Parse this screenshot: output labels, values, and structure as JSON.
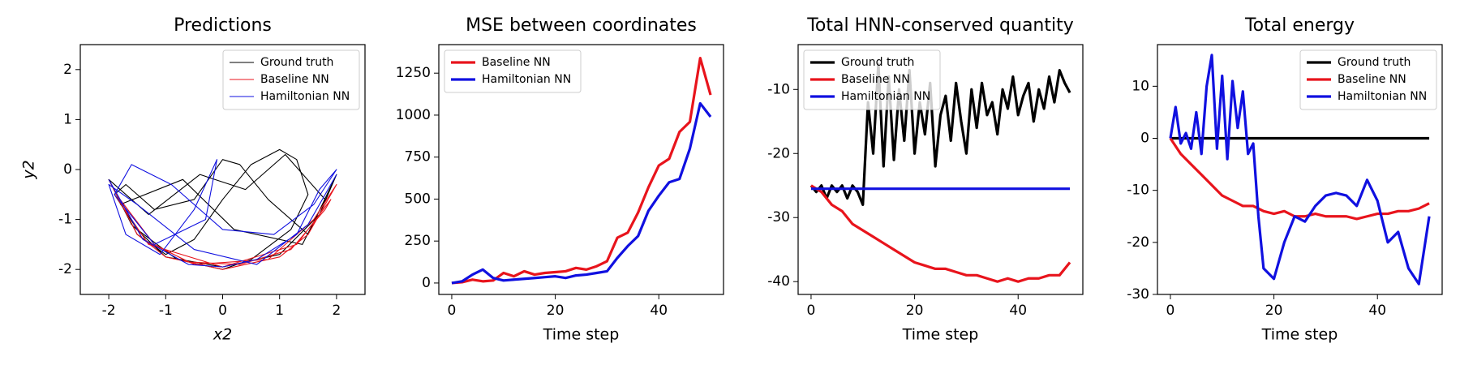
{
  "chart_data": [
    {
      "type": "line",
      "title": "Predictions",
      "xlabel": "x2",
      "ylabel": "y2",
      "xlim": [
        -2.5,
        2.5
      ],
      "ylim": [
        -2.5,
        2.5
      ],
      "xticks": [
        -2,
        -1,
        0,
        1,
        2
      ],
      "yticks": [
        -2,
        -1,
        0,
        1,
        2
      ],
      "legend": "upper right",
      "series": [
        {
          "name": "Ground truth",
          "color": "#000000",
          "x": [
            -2,
            -1.5,
            -1,
            -0.5,
            0,
            0.5,
            1,
            1.3,
            1.5,
            1.2,
            0.5,
            0,
            -0.8,
            -1.5,
            -1.9,
            -1.7,
            -1.2,
            -0.5,
            0,
            0.3,
            0.8,
            1.5,
            2,
            1.7,
            1,
            0,
            -1,
            -1.6,
            -2,
            -1.3,
            -0.4,
            0.4,
            1.1,
            1.8,
            1.4,
            0.2,
            -0.7,
            -1.8
          ],
          "values": [
            -0.2,
            -1.3,
            -1.7,
            -1.4,
            -0.6,
            0.1,
            0.4,
            0.2,
            -0.5,
            -1.2,
            -1.8,
            -2,
            -1.8,
            -1.2,
            -0.5,
            -0.3,
            -0.8,
            -0.6,
            0.2,
            0.1,
            -0.6,
            -1.3,
            -0.1,
            -0.9,
            -1.7,
            -1.95,
            -1.75,
            -1.1,
            -0.2,
            -0.9,
            -0.1,
            -0.4,
            0.3,
            -0.6,
            -1.5,
            -1.2,
            -0.2,
            -0.7
          ]
        },
        {
          "name": "Baseline NN",
          "color": "#e8141c",
          "x": [
            -2,
            -1.5,
            -1,
            0,
            1,
            1.5,
            2,
            1.6,
            0.8,
            -0.5,
            -1.4,
            -1.8,
            -1.6,
            -1.2,
            -0.6,
            0.3,
            1.2,
            1.8,
            1.9,
            1.3,
            0,
            -1.3,
            -1.9
          ],
          "values": [
            -0.2,
            -1.3,
            -1.75,
            -2,
            -1.75,
            -1.3,
            -0.3,
            -1.0,
            -1.8,
            -1.9,
            -1.4,
            -0.6,
            -0.9,
            -1.5,
            -1.85,
            -1.9,
            -1.6,
            -0.8,
            -0.6,
            -1.5,
            -1.95,
            -1.5,
            -0.5
          ]
        },
        {
          "name": "Hamiltonian NN",
          "color": "#1010e0",
          "x": [
            -2,
            -1.4,
            -0.6,
            0,
            0.6,
            1.3,
            1.7,
            2,
            1.6,
            0.9,
            0,
            -0.9,
            -1.6,
            -1.9,
            -1.2,
            -0.3,
            -0.1,
            -0.5,
            -1.1,
            -1.7,
            -2,
            -1.5,
            -0.5,
            0.6,
            1.5,
            2
          ],
          "values": [
            -0.2,
            -1.4,
            -1.9,
            -1.95,
            -1.8,
            -1.3,
            -0.4,
            0,
            -0.7,
            -1.3,
            -1.2,
            -0.3,
            0.1,
            -0.5,
            -1.5,
            -1.0,
            0.2,
            -0.8,
            -1.7,
            -1.3,
            -0.3,
            -0.7,
            -1.6,
            -1.9,
            -1.1,
            -0.1
          ]
        }
      ]
    },
    {
      "type": "line",
      "title": "MSE between coordinates",
      "xlabel": "Time step",
      "xlim": [
        -2.5,
        52.5
      ],
      "ylim": [
        -68,
        1420
      ],
      "xticks": [
        0,
        20,
        40
      ],
      "yticks": [
        0,
        250,
        500,
        750,
        1000,
        1250
      ],
      "legend": "upper left",
      "series": [
        {
          "name": "Baseline NN",
          "color": "#e8141c",
          "x": [
            0,
            2,
            4,
            6,
            8,
            10,
            12,
            14,
            16,
            18,
            20,
            22,
            24,
            26,
            28,
            30,
            32,
            34,
            36,
            38,
            40,
            42,
            44,
            46,
            48,
            50
          ],
          "values": [
            0,
            5,
            20,
            10,
            15,
            60,
            40,
            70,
            50,
            60,
            65,
            70,
            90,
            80,
            100,
            130,
            270,
            300,
            420,
            570,
            700,
            740,
            900,
            960,
            1340,
            1120
          ]
        },
        {
          "name": "Hamiltonian NN",
          "color": "#1010e0",
          "x": [
            0,
            2,
            4,
            6,
            8,
            10,
            12,
            14,
            16,
            18,
            20,
            22,
            24,
            26,
            28,
            30,
            32,
            34,
            36,
            38,
            40,
            42,
            44,
            46,
            48,
            50
          ],
          "values": [
            0,
            10,
            50,
            80,
            30,
            15,
            20,
            25,
            30,
            35,
            40,
            30,
            45,
            50,
            60,
            70,
            150,
            220,
            280,
            430,
            520,
            600,
            620,
            800,
            1070,
            990
          ]
        }
      ]
    },
    {
      "type": "line",
      "title": "Total HNN-conserved quantity",
      "xlabel": "Time step",
      "xlim": [
        -2.5,
        52.5
      ],
      "ylim": [
        -42,
        -3
      ],
      "xticks": [
        0,
        20,
        40
      ],
      "yticks": [
        -40,
        -30,
        -20,
        -10
      ],
      "legend": "upper left",
      "series": [
        {
          "name": "Ground truth",
          "color": "#000000",
          "x": [
            0,
            1,
            2,
            3,
            4,
            5,
            6,
            7,
            8,
            9,
            10,
            11,
            12,
            13,
            14,
            15,
            16,
            17,
            18,
            19,
            20,
            21,
            22,
            23,
            24,
            25,
            26,
            27,
            28,
            29,
            30,
            31,
            32,
            33,
            34,
            35,
            36,
            37,
            38,
            39,
            40,
            41,
            42,
            43,
            44,
            45,
            46,
            47,
            48,
            49,
            50
          ],
          "values": [
            -25,
            -26,
            -25,
            -27,
            -25,
            -26,
            -25,
            -27,
            -25,
            -26,
            -28,
            -12,
            -20,
            -6,
            -22,
            -8,
            -21,
            -10,
            -18,
            -7,
            -20,
            -12,
            -17,
            -9,
            -22,
            -14,
            -11,
            -18,
            -9,
            -15,
            -20,
            -10,
            -16,
            -9,
            -14,
            -12,
            -17,
            -10,
            -13,
            -8,
            -14,
            -11,
            -9,
            -15,
            -10,
            -13,
            -8,
            -12,
            -7,
            -9,
            -10.5
          ]
        },
        {
          "name": "Baseline NN",
          "color": "#e8141c",
          "x": [
            0,
            2,
            4,
            6,
            8,
            10,
            12,
            14,
            16,
            18,
            20,
            22,
            24,
            26,
            28,
            30,
            32,
            34,
            36,
            38,
            40,
            42,
            44,
            46,
            48,
            50
          ],
          "values": [
            -25,
            -26,
            -28,
            -29,
            -31,
            -32,
            -33,
            -34,
            -35,
            -36,
            -37,
            -37.5,
            -38,
            -38,
            -38.5,
            -39,
            -39,
            -39.5,
            -40,
            -39.5,
            -40,
            -39.5,
            -39.5,
            -39,
            -39,
            -37
          ]
        },
        {
          "name": "Hamiltonian NN",
          "color": "#1010e0",
          "x": [
            0,
            50
          ],
          "values": [
            -25.5,
            -25.5
          ]
        }
      ]
    },
    {
      "type": "line",
      "title": "Total energy",
      "xlabel": "Time step",
      "xlim": [
        -2.5,
        52.5
      ],
      "ylim": [
        -30,
        18
      ],
      "xticks": [
        0,
        20,
        40
      ],
      "yticks": [
        -30,
        -20,
        -10,
        0,
        10
      ],
      "legend": "upper right",
      "series": [
        {
          "name": "Ground truth",
          "color": "#000000",
          "x": [
            0,
            50
          ],
          "values": [
            0,
            0
          ]
        },
        {
          "name": "Baseline NN",
          "color": "#e8141c",
          "x": [
            0,
            2,
            4,
            6,
            8,
            10,
            12,
            14,
            16,
            18,
            20,
            22,
            24,
            26,
            28,
            30,
            32,
            34,
            36,
            38,
            40,
            42,
            44,
            46,
            48,
            50
          ],
          "values": [
            0,
            -3,
            -5,
            -7,
            -9,
            -11,
            -12,
            -13,
            -13,
            -14,
            -14.5,
            -14,
            -15,
            -15,
            -14.5,
            -15,
            -15,
            -15,
            -15.5,
            -15,
            -14.5,
            -14.5,
            -14,
            -14,
            -13.5,
            -12.5
          ]
        },
        {
          "name": "Hamiltonian NN",
          "color": "#1010e0",
          "x": [
            0,
            1,
            2,
            3,
            4,
            5,
            6,
            7,
            8,
            9,
            10,
            11,
            12,
            13,
            14,
            15,
            16,
            17,
            18,
            20,
            22,
            24,
            26,
            28,
            30,
            32,
            34,
            36,
            38,
            40,
            42,
            44,
            46,
            48,
            50
          ],
          "values": [
            0,
            6,
            -1,
            1,
            -2,
            5,
            -3,
            10,
            16,
            -2,
            12,
            -4,
            11,
            2,
            9,
            -3,
            -1,
            -15,
            -25,
            -27,
            -20,
            -15,
            -16,
            -13,
            -11,
            -10.5,
            -11,
            -13,
            -8,
            -12,
            -20,
            -18,
            -25,
            -28,
            -15
          ]
        }
      ]
    }
  ]
}
